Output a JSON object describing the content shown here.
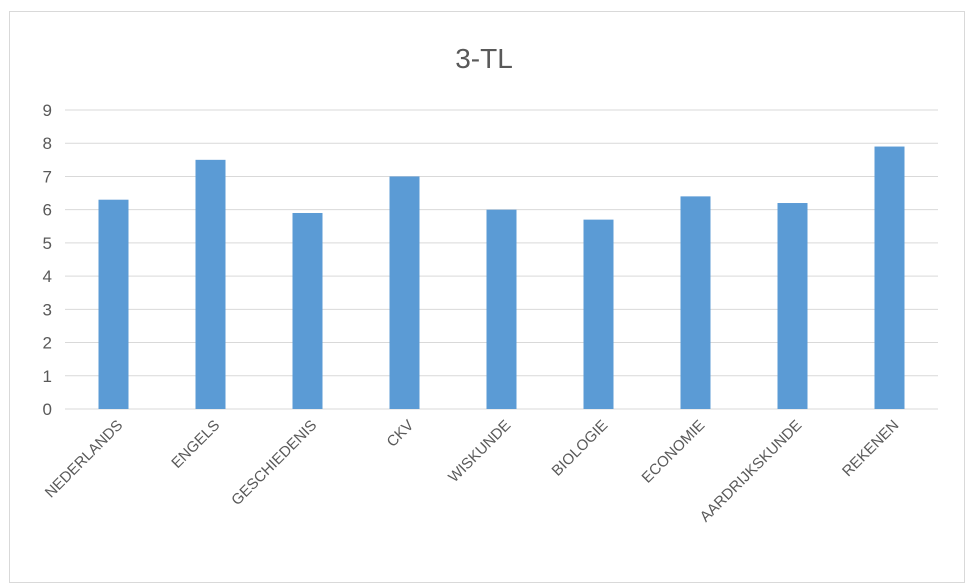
{
  "chart_data": {
    "type": "bar",
    "title": "3-TL",
    "categories": [
      "NEDERLANDS",
      "ENGELS",
      "GESCHIEDENIS",
      "CKV",
      "WISKUNDE",
      "BIOLOGIE",
      "ECONOMIE",
      "AARDRIJKSKUNDE",
      "REKENEN"
    ],
    "values": [
      6.3,
      7.5,
      5.9,
      7.0,
      6.0,
      5.7,
      6.4,
      6.2,
      7.9
    ],
    "ylim": [
      0,
      9
    ],
    "yticks": [
      "0",
      "1",
      "2",
      "3",
      "4",
      "5",
      "6",
      "7",
      "8",
      "9"
    ],
    "xlabel": "",
    "ylabel": "",
    "grid": true,
    "legend": "none",
    "colors": {
      "bar": "#5b9bd5",
      "grid": "#d9d9d9",
      "text": "#595959"
    }
  }
}
